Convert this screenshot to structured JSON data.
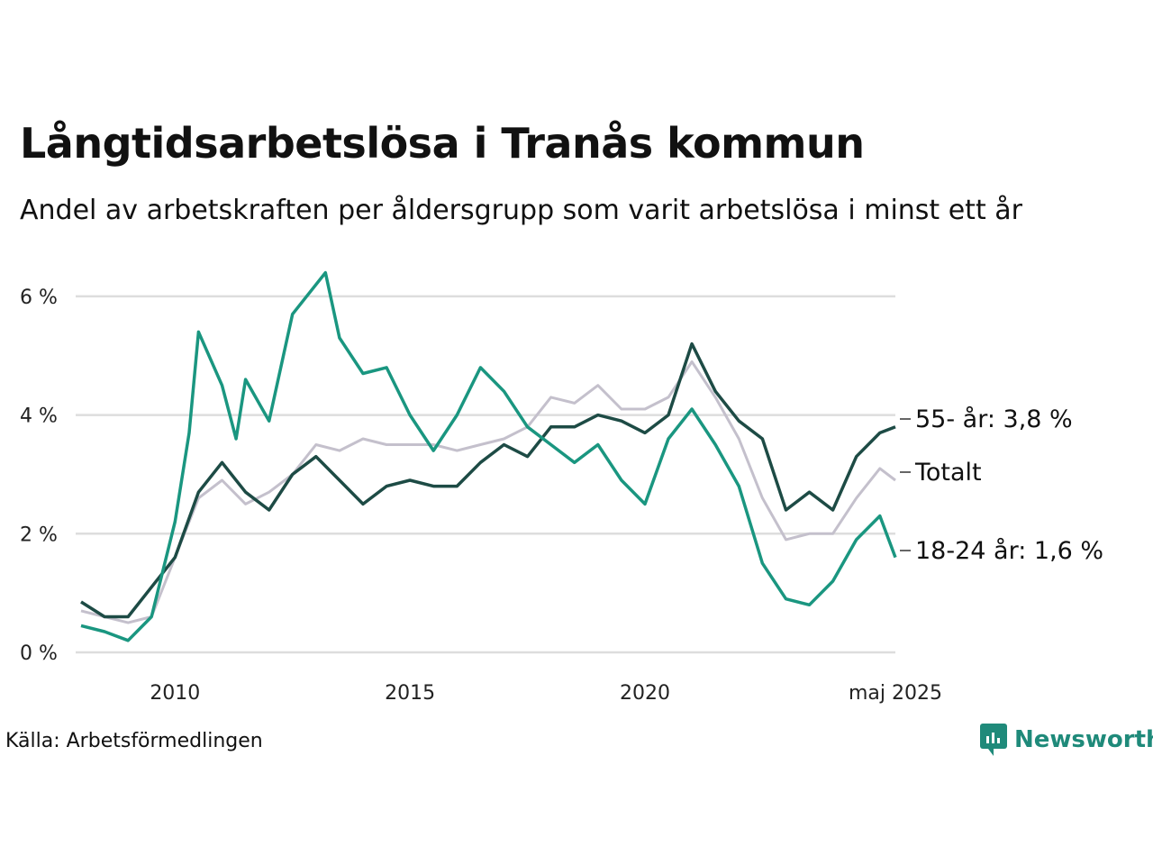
{
  "title": "Långtidsarbetslösa i Tranås kommun",
  "subtitle": "Andel av arbetskraften per åldersgrupp som varit arbetslösa i minst ett år",
  "source": "Källa: Arbetsförmedlingen",
  "brand": "Newsworthy",
  "chart_data": {
    "type": "line",
    "x_start": "2008-01",
    "x_end": "2025-05",
    "xlim": [
      2008.0,
      2025.33
    ],
    "ylim": [
      0,
      6.5
    ],
    "y_ticks": [
      0,
      2,
      4,
      6
    ],
    "y_tick_labels": [
      "0 %",
      "2 %",
      "4 %",
      "6 %"
    ],
    "x_ticks": [
      2010,
      2015,
      2020,
      2025.33
    ],
    "x_tick_labels": [
      "2010",
      "2015",
      "2020",
      "maj 2025"
    ],
    "grid": true,
    "colors": {
      "total": "#c4c0cc",
      "age55": "#1d4b45",
      "age18_24": "#1a9680",
      "grid": "#dddddd"
    },
    "series": [
      {
        "key": "total",
        "name": "Totalt",
        "end_label": "Totalt",
        "points": [
          [
            2008.0,
            0.7
          ],
          [
            2008.5,
            0.6
          ],
          [
            2009.0,
            0.5
          ],
          [
            2009.5,
            0.6
          ],
          [
            2010.0,
            1.6
          ],
          [
            2010.5,
            2.6
          ],
          [
            2011.0,
            2.9
          ],
          [
            2011.5,
            2.5
          ],
          [
            2012.0,
            2.7
          ],
          [
            2012.5,
            3.0
          ],
          [
            2013.0,
            3.5
          ],
          [
            2013.5,
            3.4
          ],
          [
            2014.0,
            3.6
          ],
          [
            2014.5,
            3.5
          ],
          [
            2015.0,
            3.5
          ],
          [
            2015.5,
            3.5
          ],
          [
            2016.0,
            3.4
          ],
          [
            2016.5,
            3.5
          ],
          [
            2017.0,
            3.6
          ],
          [
            2017.5,
            3.8
          ],
          [
            2018.0,
            4.3
          ],
          [
            2018.5,
            4.2
          ],
          [
            2019.0,
            4.5
          ],
          [
            2019.5,
            4.1
          ],
          [
            2020.0,
            4.1
          ],
          [
            2020.5,
            4.3
          ],
          [
            2021.0,
            4.9
          ],
          [
            2021.5,
            4.3
          ],
          [
            2022.0,
            3.6
          ],
          [
            2022.5,
            2.6
          ],
          [
            2023.0,
            1.9
          ],
          [
            2023.5,
            2.0
          ],
          [
            2024.0,
            2.0
          ],
          [
            2024.5,
            2.6
          ],
          [
            2025.0,
            3.1
          ],
          [
            2025.33,
            2.9
          ]
        ]
      },
      {
        "key": "age55",
        "name": "55- år",
        "end_label": "55- år: 3,8 %",
        "points": [
          [
            2008.0,
            0.85
          ],
          [
            2008.5,
            0.6
          ],
          [
            2009.0,
            0.6
          ],
          [
            2009.5,
            1.1
          ],
          [
            2010.0,
            1.6
          ],
          [
            2010.5,
            2.7
          ],
          [
            2011.0,
            3.2
          ],
          [
            2011.5,
            2.7
          ],
          [
            2012.0,
            2.4
          ],
          [
            2012.5,
            3.0
          ],
          [
            2013.0,
            3.3
          ],
          [
            2013.5,
            2.9
          ],
          [
            2014.0,
            2.5
          ],
          [
            2014.5,
            2.8
          ],
          [
            2015.0,
            2.9
          ],
          [
            2015.5,
            2.8
          ],
          [
            2016.0,
            2.8
          ],
          [
            2016.5,
            3.2
          ],
          [
            2017.0,
            3.5
          ],
          [
            2017.5,
            3.3
          ],
          [
            2018.0,
            3.8
          ],
          [
            2018.5,
            3.8
          ],
          [
            2019.0,
            4.0
          ],
          [
            2019.5,
            3.9
          ],
          [
            2020.0,
            3.7
          ],
          [
            2020.5,
            4.0
          ],
          [
            2021.0,
            5.2
          ],
          [
            2021.5,
            4.4
          ],
          [
            2022.0,
            3.9
          ],
          [
            2022.5,
            3.6
          ],
          [
            2023.0,
            2.4
          ],
          [
            2023.5,
            2.7
          ],
          [
            2024.0,
            2.4
          ],
          [
            2024.5,
            3.3
          ],
          [
            2025.0,
            3.7
          ],
          [
            2025.33,
            3.8
          ]
        ]
      },
      {
        "key": "age18_24",
        "name": "18-24 år",
        "end_label": "18-24 år: 1,6 %",
        "points": [
          [
            2008.0,
            0.45
          ],
          [
            2008.5,
            0.35
          ],
          [
            2009.0,
            0.2
          ],
          [
            2009.5,
            0.6
          ],
          [
            2010.0,
            2.2
          ],
          [
            2010.3,
            3.7
          ],
          [
            2010.5,
            5.4
          ],
          [
            2011.0,
            4.5
          ],
          [
            2011.3,
            3.6
          ],
          [
            2011.5,
            4.6
          ],
          [
            2012.0,
            3.9
          ],
          [
            2012.5,
            5.7
          ],
          [
            2013.0,
            6.2
          ],
          [
            2013.2,
            6.4
          ],
          [
            2013.5,
            5.3
          ],
          [
            2014.0,
            4.7
          ],
          [
            2014.5,
            4.8
          ],
          [
            2015.0,
            4.0
          ],
          [
            2015.5,
            3.4
          ],
          [
            2016.0,
            4.0
          ],
          [
            2016.5,
            4.8
          ],
          [
            2017.0,
            4.4
          ],
          [
            2017.5,
            3.8
          ],
          [
            2018.0,
            3.5
          ],
          [
            2018.5,
            3.2
          ],
          [
            2019.0,
            3.5
          ],
          [
            2019.5,
            2.9
          ],
          [
            2020.0,
            2.5
          ],
          [
            2020.5,
            3.6
          ],
          [
            2021.0,
            4.1
          ],
          [
            2021.5,
            3.5
          ],
          [
            2022.0,
            2.8
          ],
          [
            2022.5,
            1.5
          ],
          [
            2023.0,
            0.9
          ],
          [
            2023.5,
            0.8
          ],
          [
            2024.0,
            1.2
          ],
          [
            2024.5,
            1.9
          ],
          [
            2025.0,
            2.3
          ],
          [
            2025.33,
            1.6
          ]
        ]
      }
    ]
  }
}
